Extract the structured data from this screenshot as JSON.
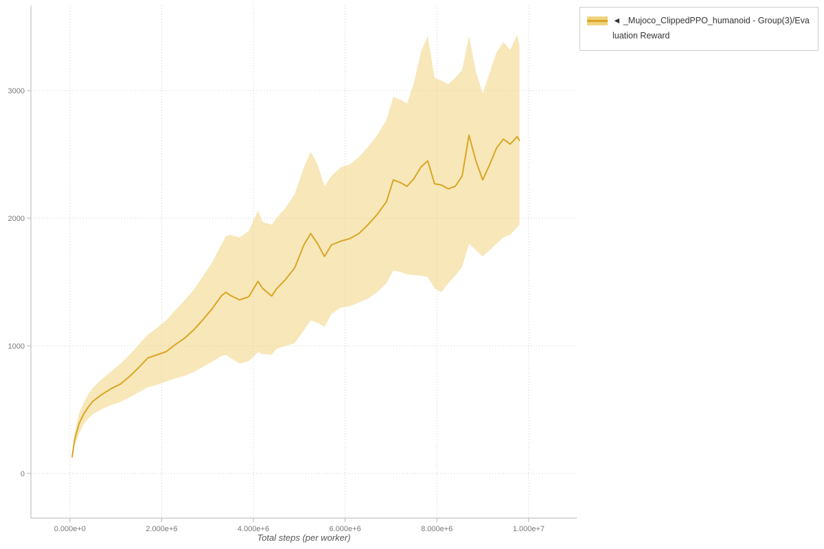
{
  "chart_data": {
    "type": "line",
    "title": "",
    "xlabel": "Total steps (per worker)",
    "ylabel": "",
    "xlim": [
      -850000,
      11050000
    ],
    "ylim": [
      -350,
      3667
    ],
    "grid": true,
    "x_ticks": [
      {
        "value": 0,
        "label": "0.000e+0"
      },
      {
        "value": 2000000,
        "label": "2.000e+6"
      },
      {
        "value": 4000000,
        "label": "4.000e+6"
      },
      {
        "value": 6000000,
        "label": "6.000e+6"
      },
      {
        "value": 8000000,
        "label": "8.000e+6"
      },
      {
        "value": 10000000,
        "label": "1.000e+7"
      }
    ],
    "y_ticks": [
      {
        "value": 0,
        "label": "0"
      },
      {
        "value": 1000,
        "label": "1000"
      },
      {
        "value": 2000,
        "label": "2000"
      },
      {
        "value": 3000,
        "label": "3000"
      }
    ],
    "legend": {
      "position": "top-right",
      "label": "◄ _Mujoco_ClippedPPO_humanoid - Group(3)/Evaluation Reward"
    },
    "style": {
      "line_color": "#d9a521",
      "band_color": "#f0d37f",
      "band_opacity": 0.55,
      "grid_color": "#c9c9c9",
      "axis_color": "#b3b3b3",
      "tick_label_color": "#777777"
    },
    "series": [
      {
        "name": "_Mujoco_ClippedPPO_humanoid - Group(3)/Evaluation Reward",
        "x": [
          50000,
          100000,
          200000,
          300000,
          400000,
          500000,
          700000,
          900000,
          1100000,
          1300000,
          1500000,
          1700000,
          1900000,
          2100000,
          2300000,
          2500000,
          2700000,
          2900000,
          3100000,
          3300000,
          3400000,
          3500000,
          3700000,
          3900000,
          4100000,
          4200000,
          4400000,
          4500000,
          4700000,
          4900000,
          5100000,
          5250000,
          5400000,
          5550000,
          5700000,
          5900000,
          6100000,
          6300000,
          6500000,
          6700000,
          6900000,
          7050000,
          7200000,
          7350000,
          7500000,
          7650000,
          7800000,
          7950000,
          8100000,
          8250000,
          8400000,
          8550000,
          8700000,
          8850000,
          9000000,
          9150000,
          9300000,
          9450000,
          9600000,
          9750000,
          9800000
        ],
        "mean": [
          130,
          260,
          390,
          465,
          520,
          565,
          620,
          665,
          700,
          760,
          830,
          905,
          930,
          955,
          1010,
          1060,
          1125,
          1205,
          1290,
          1390,
          1420,
          1395,
          1360,
          1385,
          1505,
          1450,
          1390,
          1445,
          1520,
          1610,
          1790,
          1880,
          1800,
          1700,
          1790,
          1820,
          1840,
          1880,
          1950,
          2030,
          2130,
          2300,
          2280,
          2250,
          2310,
          2400,
          2450,
          2270,
          2260,
          2230,
          2250,
          2330,
          2650,
          2450,
          2300,
          2420,
          2550,
          2620,
          2580,
          2640,
          2610
        ],
        "lower": [
          110,
          215,
          310,
          385,
          430,
          465,
          505,
          535,
          560,
          595,
          635,
          675,
          695,
          720,
          745,
          765,
          795,
          835,
          875,
          920,
          930,
          905,
          860,
          880,
          950,
          935,
          930,
          975,
          1000,
          1020,
          1120,
          1200,
          1180,
          1150,
          1250,
          1300,
          1310,
          1340,
          1370,
          1420,
          1490,
          1590,
          1580,
          1560,
          1555,
          1550,
          1540,
          1450,
          1420,
          1490,
          1550,
          1620,
          1800,
          1750,
          1700,
          1750,
          1800,
          1850,
          1870,
          1930,
          1950
        ],
        "upper": [
          160,
          315,
          470,
          555,
          620,
          670,
          740,
          800,
          860,
          930,
          1010,
          1090,
          1140,
          1200,
          1280,
          1355,
          1440,
          1545,
          1655,
          1790,
          1860,
          1870,
          1850,
          1900,
          2060,
          1970,
          1950,
          2000,
          2080,
          2190,
          2400,
          2520,
          2420,
          2250,
          2330,
          2400,
          2420,
          2480,
          2560,
          2650,
          2770,
          2950,
          2930,
          2900,
          3060,
          3300,
          3430,
          3100,
          3080,
          3050,
          3100,
          3160,
          3430,
          3150,
          2980,
          3140,
          3300,
          3380,
          3320,
          3440,
          3350
        ]
      }
    ]
  }
}
